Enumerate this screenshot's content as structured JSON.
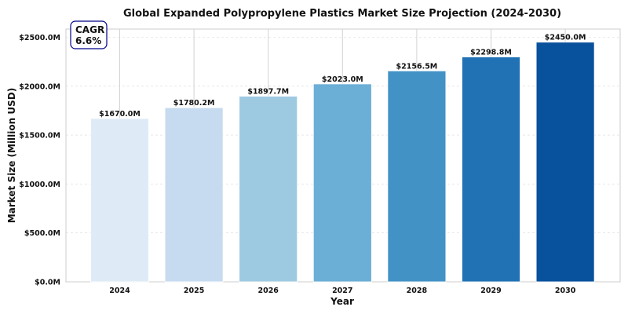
{
  "chart_data": {
    "type": "bar",
    "title": "Global Expanded Polypropylene Plastics Market Size Projection (2024-2030)",
    "xlabel": "Year",
    "ylabel": "Market Size (Million USD)",
    "categories": [
      "2024",
      "2025",
      "2026",
      "2027",
      "2028",
      "2029",
      "2030"
    ],
    "values": [
      1670.0,
      1780.2,
      1897.7,
      2023.0,
      2156.5,
      2298.8,
      2450.0
    ],
    "data_labels": [
      "$1670.0M",
      "$1780.2M",
      "$1897.7M",
      "$2023.0M",
      "$2156.5M",
      "$2298.8M",
      "$2450.0M"
    ],
    "ylim": [
      0,
      2500
    ],
    "yticks": [
      0,
      500,
      1000,
      1500,
      2000,
      2500
    ],
    "ytick_labels": [
      "$0.0M",
      "$500.0M",
      "$1000.0M",
      "$1500.0M",
      "$2000.0M",
      "$2500.0M"
    ],
    "bar_colors": [
      "#deebf7",
      "#c6dbef",
      "#9ecae1",
      "#6baed6",
      "#4292c6",
      "#2171b5",
      "#08519c"
    ],
    "grid": true,
    "annotation": {
      "line1": "CAGR",
      "line2": "6.6%",
      "border_color": "#00008b"
    }
  }
}
